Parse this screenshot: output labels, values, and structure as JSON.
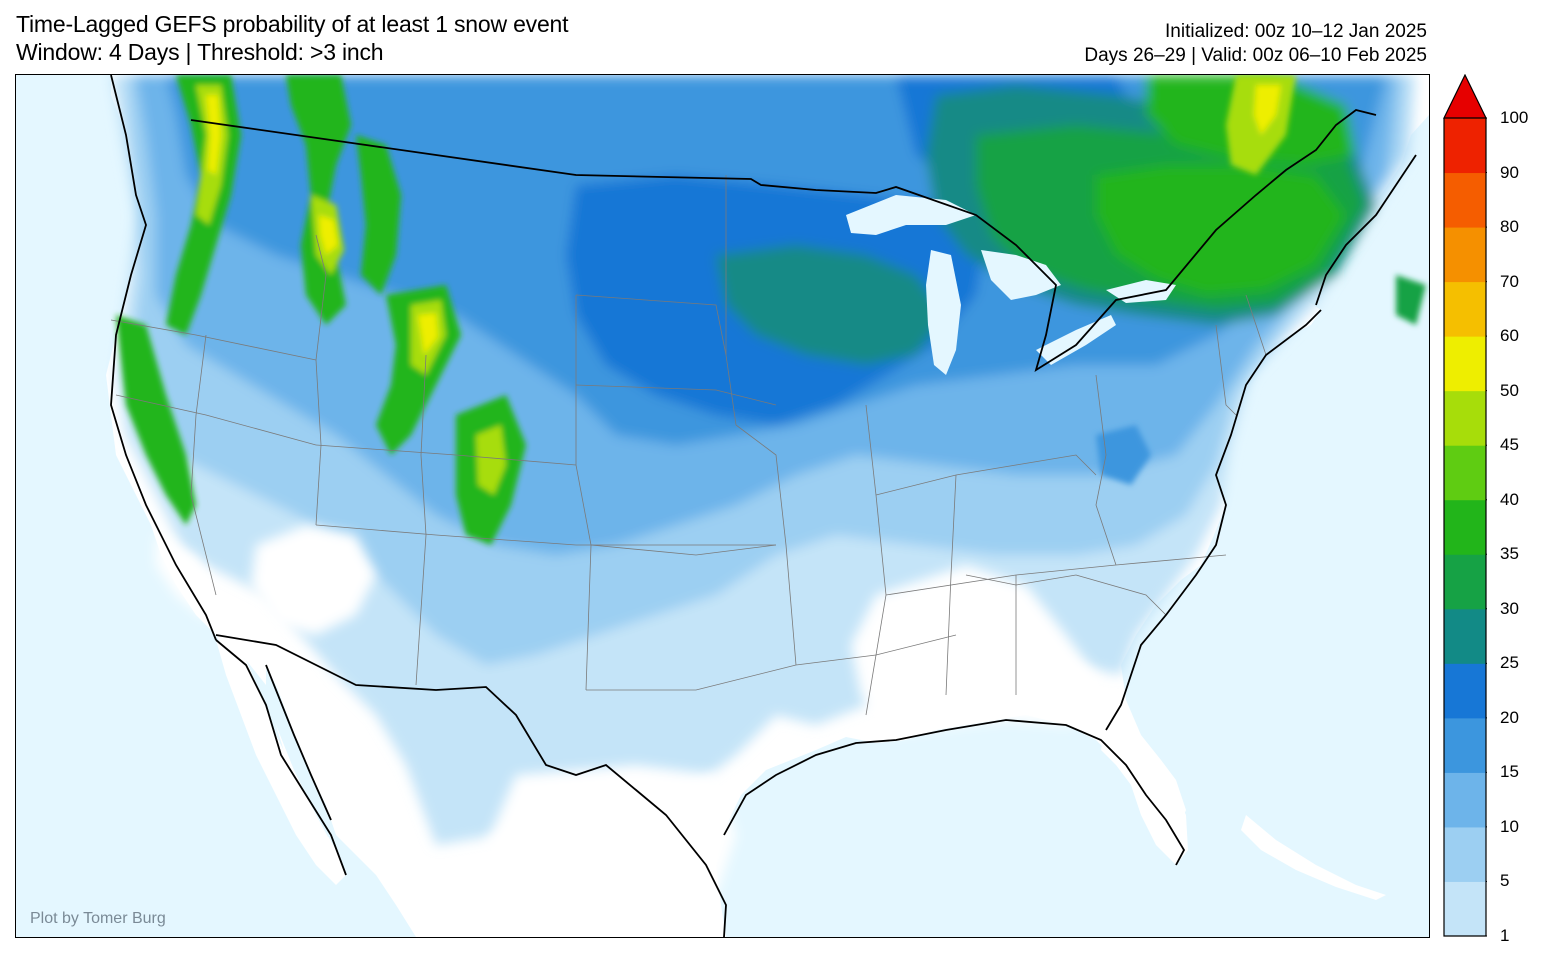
{
  "title": {
    "line1": "Time-Lagged GEFS probability of at least 1 snow event",
    "line2": "Window: 4 Days | Threshold: >3 inch"
  },
  "info": {
    "initialized": "Initialized: 00z 10–12 Jan 2025",
    "valid": "Days 26–29 | Valid: 00z 06–10 Feb 2025"
  },
  "credit": "Plot by Tomer Burg",
  "colorbar": {
    "labels": [
      "1",
      "5",
      "10",
      "15",
      "20",
      "25",
      "30",
      "35",
      "40",
      "45",
      "50",
      "60",
      "70",
      "80",
      "90",
      "100"
    ],
    "colors": [
      "#c4e4f8",
      "#9ccff2",
      "#6db4ea",
      "#3c96de",
      "#1777d6",
      "#128a86",
      "#16a245",
      "#22b51a",
      "#5fcc12",
      "#a7dd0a",
      "#eeee00",
      "#f5bf00",
      "#f59000",
      "#f55d00",
      "#ee2200",
      "#e60000"
    ]
  },
  "map": {
    "ocean_color": "#e4f7ff",
    "land_color": "#ffffff"
  }
}
